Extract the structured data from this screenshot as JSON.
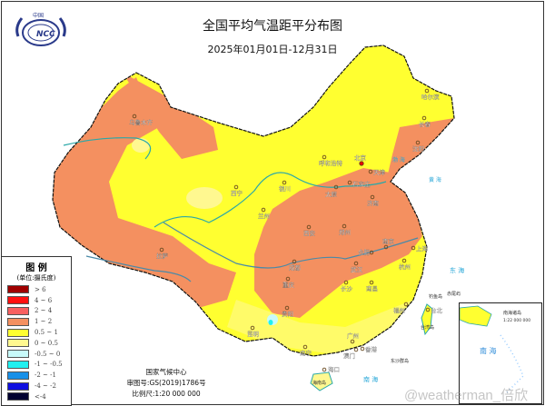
{
  "header": {
    "logo_text": "NCC",
    "logo_top_text": "中国",
    "title": "全国平均气温距平分布图",
    "date_range": "2025年01月01日-12月31日"
  },
  "legend": {
    "title": "图 例",
    "unit": "(单位:摄氏度)",
    "items": [
      {
        "label": "> 6",
        "color": "#a00000"
      },
      {
        "label": "4 ~ 6",
        "color": "#ff1010"
      },
      {
        "label": "2 ~ 4",
        "color": "#f86060"
      },
      {
        "label": "1 ~ 2",
        "color": "#f49060"
      },
      {
        "label": "0.5 ~ 1",
        "color": "#ffff30"
      },
      {
        "label": "0 ~ 0.5",
        "color": "#fff890"
      },
      {
        "label": "-0.5 ~ 0",
        "color": "#c8fafa"
      },
      {
        "label": "-1 ~ -0.5",
        "color": "#20f0f0"
      },
      {
        "label": "-2 ~ -1",
        "color": "#1890e8"
      },
      {
        "label": "-4 ~ -2",
        "color": "#1010e0"
      },
      {
        "label": "<-4",
        "color": "#000030"
      }
    ]
  },
  "cities": [
    {
      "name": "乌鲁木齐"
    },
    {
      "name": "哈尔滨"
    },
    {
      "name": "长春"
    },
    {
      "name": "沈阳"
    },
    {
      "name": "呼和浩特"
    },
    {
      "name": "北京"
    },
    {
      "name": "天津"
    },
    {
      "name": "石家庄"
    },
    {
      "name": "太原"
    },
    {
      "name": "济南"
    },
    {
      "name": "银川"
    },
    {
      "name": "西宁"
    },
    {
      "name": "兰州"
    },
    {
      "name": "西安"
    },
    {
      "name": "郑州"
    },
    {
      "name": "南京"
    },
    {
      "name": "合肥"
    },
    {
      "name": "上海"
    },
    {
      "name": "杭州"
    },
    {
      "name": "武汉"
    },
    {
      "name": "成都"
    },
    {
      "name": "重庆"
    },
    {
      "name": "长沙"
    },
    {
      "name": "南昌"
    },
    {
      "name": "拉萨"
    },
    {
      "name": "贵阳"
    },
    {
      "name": "昆明"
    },
    {
      "name": "福州"
    },
    {
      "name": "台北"
    },
    {
      "name": "广州"
    },
    {
      "name": "南宁"
    },
    {
      "name": "澳门"
    },
    {
      "name": "香港"
    },
    {
      "name": "海口"
    }
  ],
  "map_labels": {
    "hainan": "海南岛",
    "taiwan": "台湾岛",
    "dongsha": "东沙群岛",
    "diaoyu": "钓鱼岛",
    "chiwei": "赤尾屿",
    "south_sea": "南 海",
    "east_sea": "东 海",
    "bohai": "渤 海",
    "yellow_sea": "黄 海",
    "inset_title": "南海诸岛",
    "inset_scale": "1:22 000 000",
    "inset_sea": "南 海"
  },
  "footer": {
    "org": "国家气候中心",
    "review_no": "审图号:GS(2019)1786号",
    "scale": "比例尺:1:20 000 000"
  },
  "watermark": "@weatherman_倍欣"
}
